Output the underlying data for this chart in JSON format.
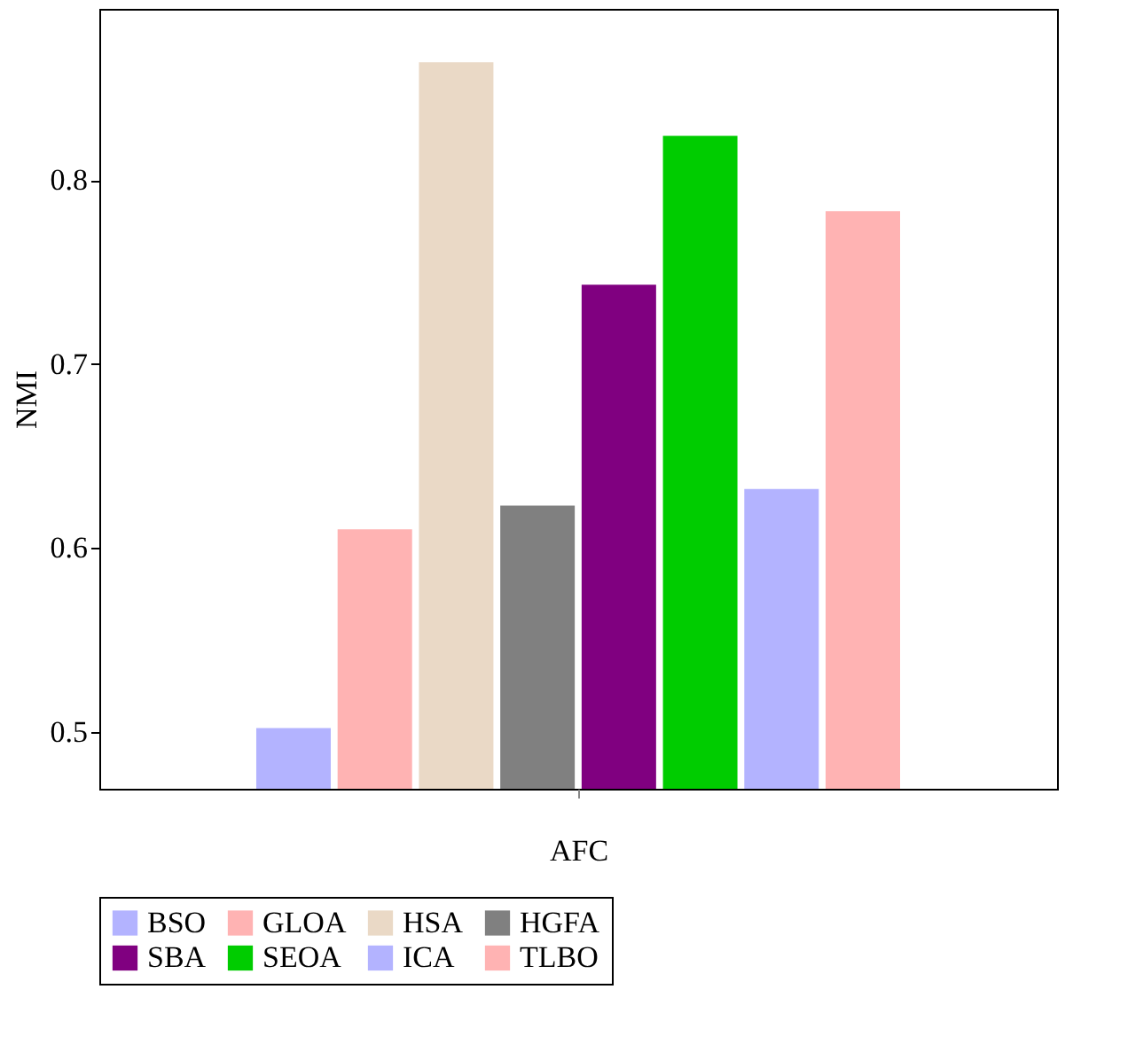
{
  "chart_data": {
    "type": "bar",
    "xlabel": "AFC",
    "ylabel": "NMI",
    "categories": [
      null
    ],
    "series": [
      {
        "name": "BSO",
        "color": "#b3b3ff",
        "values": [
          0.502
        ]
      },
      {
        "name": "GLOA",
        "color": "#ffb3b3",
        "values": [
          0.61
        ]
      },
      {
        "name": "HSA",
        "color": "#ead9c6",
        "values": [
          0.864
        ]
      },
      {
        "name": "HGFA",
        "color": "#808080",
        "values": [
          0.623
        ]
      },
      {
        "name": "SBA",
        "color": "#800080",
        "values": [
          0.743
        ]
      },
      {
        "name": "SEOA",
        "color": "#00cc00",
        "values": [
          0.824
        ]
      },
      {
        "name": "ICA",
        "color": "#b3b3ff",
        "values": [
          0.632
        ]
      },
      {
        "name": "TLBO",
        "color": "#ffb3b3",
        "values": [
          0.783
        ]
      }
    ],
    "ylim": [
      0.469,
      0.893
    ],
    "yticks": [
      0.5,
      0.6,
      0.7,
      0.8
    ],
    "grid": false,
    "legend": "bottom"
  }
}
